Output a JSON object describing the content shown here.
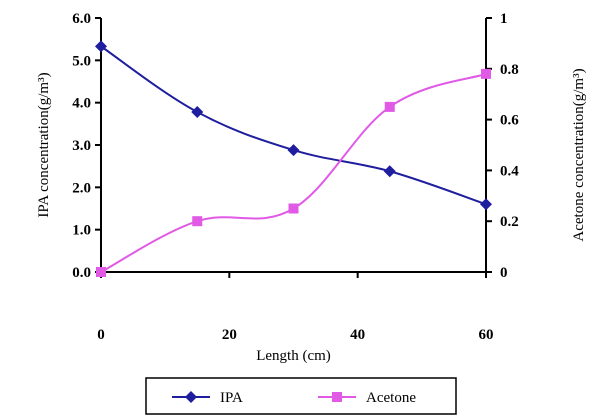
{
  "chart_data": {
    "type": "line",
    "title": "",
    "xlabel": "Length (cm)",
    "ylabel": "IPA concentration(g/m³)",
    "y2label": "Acetone concentration(g/m³)",
    "xlim": [
      0,
      60
    ],
    "ylim": [
      0.0,
      6.0
    ],
    "y2lim": [
      0,
      1
    ],
    "x_ticks": [
      "0",
      "20",
      "40",
      "60"
    ],
    "y_ticks": [
      "0.0",
      "1.0",
      "2.0",
      "3.0",
      "4.0",
      "5.0",
      "6.0"
    ],
    "y2_ticks": [
      "0",
      "0.2",
      "0.4",
      "0.6",
      "0.8",
      "1"
    ],
    "grid": false,
    "legend_position": "bottom",
    "series": [
      {
        "name": "IPA",
        "axis": "left",
        "marker": "diamond",
        "color": "#1e1e9e",
        "x": [
          0,
          15,
          30,
          45,
          60
        ],
        "y": [
          5.33,
          3.78,
          2.88,
          2.38,
          1.6
        ]
      },
      {
        "name": "Acetone",
        "axis": "right",
        "marker": "square",
        "color": "#e05ae6",
        "x": [
          0,
          15,
          30,
          45,
          60
        ],
        "y": [
          0.0,
          0.2,
          0.25,
          0.65,
          0.78
        ]
      }
    ]
  }
}
